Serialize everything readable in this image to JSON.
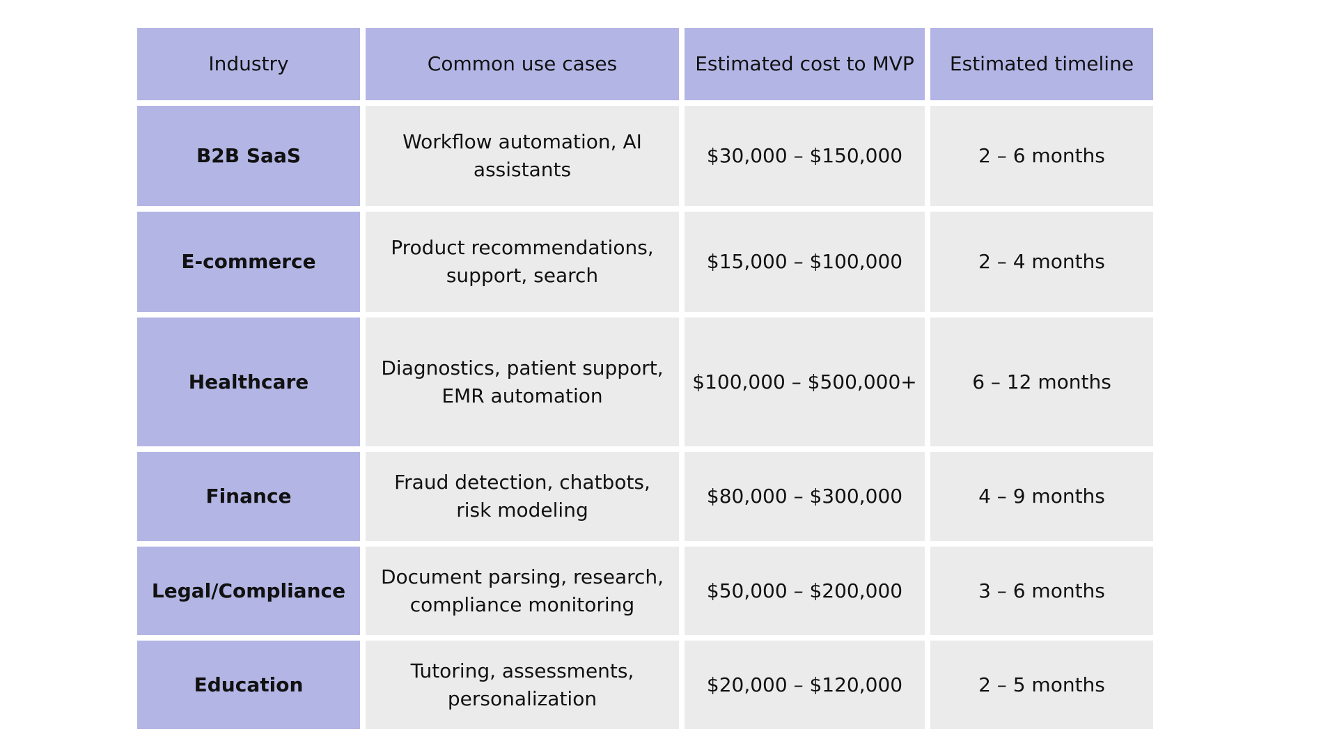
{
  "table": {
    "headers": [
      "Industry",
      "Common use cases",
      "Estimated cost to MVP",
      "Estimated timeline"
    ],
    "rows": [
      {
        "industry": "B2B SaaS",
        "use_cases": "Workflow automation, AI assistants",
        "cost": "$30,000 – $150,000",
        "timeline": "2 – 6 months"
      },
      {
        "industry": "E-commerce",
        "use_cases": "Product recommendations, support, search",
        "cost": "$15,000 – $100,000",
        "timeline": "2 – 4 months"
      },
      {
        "industry": "Healthcare",
        "use_cases": "Diagnostics, patient support, EMR automation",
        "cost": "$100,000 – $500,000+",
        "timeline": "6 – 12 months"
      },
      {
        "industry": "Finance",
        "use_cases": "Fraud detection, chatbots, risk modeling",
        "cost": "$80,000 – $300,000",
        "timeline": "4 – 9 months"
      },
      {
        "industry": "Legal/Compliance",
        "use_cases": "Document parsing, research, compliance monitoring",
        "cost": "$50,000 – $200,000",
        "timeline": "3 – 6 months"
      },
      {
        "industry": "Education",
        "use_cases": "Tutoring, assessments, personalization",
        "cost": "$20,000 – $120,000",
        "timeline": "2 – 5 months"
      }
    ]
  },
  "colors": {
    "header_bg": "#b3b5e5",
    "industry_bg": "#b3b5e5",
    "cell_bg": "#ebebeb",
    "page_bg": "#ffffff"
  }
}
